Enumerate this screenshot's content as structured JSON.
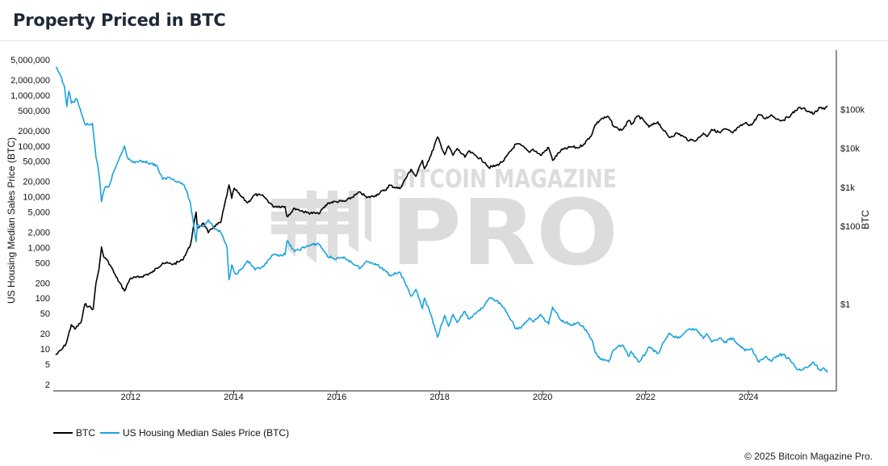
{
  "header": {
    "title": "Property Priced in BTC"
  },
  "chart_data": {
    "type": "line",
    "title": "Property Priced in BTC",
    "y_left": {
      "label": "US Housing Median Sales Price (BTC)",
      "scale": "log",
      "range": [
        2,
        5000000
      ],
      "ticks": [
        2,
        5,
        10,
        20,
        50,
        100,
        200,
        500,
        1000,
        2000,
        5000,
        10000,
        20000,
        50000,
        100000,
        200000,
        500000,
        1000000,
        2000000,
        5000000
      ],
      "tick_labels": [
        "2",
        "5",
        "10",
        "20",
        "50",
        "100",
        "200",
        "500",
        "1,000",
        "2,000",
        "5,000",
        "10,000",
        "20,000",
        "50,000",
        "100,000",
        "200,000",
        "500,000",
        "1,000,000",
        "2,000,000",
        "5,000,000"
      ]
    },
    "y_right": {
      "label": "BTC",
      "scale": "log",
      "range": [
        0.006,
        3000000
      ],
      "ticks": [
        1,
        100,
        1000,
        10000,
        100000
      ],
      "tick_labels": [
        "$1",
        "$100",
        "$1k",
        "$10k",
        "$100k"
      ]
    },
    "x_axis": {
      "range": [
        "2010-07-01",
        "2025-09-15"
      ],
      "ticks": [
        "2012-01-01",
        "2014-01-01",
        "2016-01-01",
        "2018-01-01",
        "2020-01-01",
        "2022-01-01",
        "2024-01-01"
      ],
      "tick_labels": [
        "2012",
        "2014",
        "2016",
        "2018",
        "2020",
        "2022",
        "2024"
      ]
    },
    "grid": false,
    "legend_position": "bottom-left",
    "series": [
      {
        "name": "BTC",
        "axis": "right",
        "color": "#000000",
        "points": [
          [
            "2010-07-18",
            0.05
          ],
          [
            "2010-09-01",
            0.07
          ],
          [
            "2010-10-01",
            0.1
          ],
          [
            "2010-11-06",
            0.3
          ],
          [
            "2010-12-01",
            0.23
          ],
          [
            "2011-01-15",
            0.35
          ],
          [
            "2011-02-10",
            1.0
          ],
          [
            "2011-03-10",
            0.88
          ],
          [
            "2011-04-10",
            0.75
          ],
          [
            "2011-04-30",
            3.5
          ],
          [
            "2011-05-20",
            7.5
          ],
          [
            "2011-06-08",
            29.5
          ],
          [
            "2011-06-25",
            16
          ],
          [
            "2011-07-15",
            14
          ],
          [
            "2011-08-10",
            10
          ],
          [
            "2011-09-20",
            5
          ],
          [
            "2011-11-18",
            2.2
          ],
          [
            "2011-12-31",
            4.7
          ],
          [
            "2012-03-01",
            4.9
          ],
          [
            "2012-06-01",
            6.5
          ],
          [
            "2012-08-15",
            11.5
          ],
          [
            "2012-11-01",
            10.7
          ],
          [
            "2013-01-01",
            13.5
          ],
          [
            "2013-02-28",
            33
          ],
          [
            "2013-04-09",
            230
          ],
          [
            "2013-04-18",
            90
          ],
          [
            "2013-06-01",
            120
          ],
          [
            "2013-07-05",
            68
          ],
          [
            "2013-08-15",
            100
          ],
          [
            "2013-10-01",
            125
          ],
          [
            "2013-11-29",
            1150
          ],
          [
            "2013-12-18",
            520
          ],
          [
            "2014-01-05",
            950
          ],
          [
            "2014-02-15",
            620
          ],
          [
            "2014-04-10",
            400
          ],
          [
            "2014-06-01",
            650
          ],
          [
            "2014-08-01",
            590
          ],
          [
            "2014-10-05",
            330
          ],
          [
            "2014-12-31",
            320
          ],
          [
            "2015-01-14",
            178
          ],
          [
            "2015-03-10",
            290
          ],
          [
            "2015-06-01",
            225
          ],
          [
            "2015-08-25",
            210
          ],
          [
            "2015-11-04",
            400
          ],
          [
            "2015-12-31",
            430
          ],
          [
            "2016-03-01",
            435
          ],
          [
            "2016-06-18",
            750
          ],
          [
            "2016-08-02",
            540
          ],
          [
            "2016-10-01",
            615
          ],
          [
            "2016-12-31",
            960
          ],
          [
            "2017-01-05",
            1130
          ],
          [
            "2017-03-24",
            920
          ],
          [
            "2017-06-12",
            2900
          ],
          [
            "2017-07-16",
            1900
          ],
          [
            "2017-09-01",
            4900
          ],
          [
            "2017-09-15",
            3000
          ],
          [
            "2017-11-01",
            6700
          ],
          [
            "2017-12-17",
            19500
          ],
          [
            "2018-02-06",
            6900
          ],
          [
            "2018-03-05",
            11500
          ],
          [
            "2018-04-06",
            6600
          ],
          [
            "2018-05-05",
            9800
          ],
          [
            "2018-06-29",
            5900
          ],
          [
            "2018-07-24",
            8300
          ],
          [
            "2018-09-15",
            6500
          ],
          [
            "2018-11-20",
            4300
          ],
          [
            "2018-12-15",
            3200
          ],
          [
            "2019-02-08",
            3600
          ],
          [
            "2019-04-02",
            4900
          ],
          [
            "2019-06-26",
            12900
          ],
          [
            "2019-08-05",
            11800
          ],
          [
            "2019-09-26",
            8000
          ],
          [
            "2019-10-26",
            9500
          ],
          [
            "2019-12-18",
            6600
          ],
          [
            "2020-02-13",
            10400
          ],
          [
            "2020-03-12",
            4900
          ],
          [
            "2020-05-10",
            8800
          ],
          [
            "2020-07-27",
            11000
          ],
          [
            "2020-09-05",
            10200
          ],
          [
            "2020-10-21",
            12900
          ],
          [
            "2020-12-17",
            23000
          ],
          [
            "2021-01-08",
            40000
          ],
          [
            "2021-02-21",
            57000
          ],
          [
            "2021-04-14",
            63500
          ],
          [
            "2021-05-19",
            37000
          ],
          [
            "2021-06-22",
            31000
          ],
          [
            "2021-07-20",
            29800
          ],
          [
            "2021-09-06",
            52000
          ],
          [
            "2021-09-21",
            41000
          ],
          [
            "2021-11-10",
            68000
          ],
          [
            "2021-12-31",
            46000
          ],
          [
            "2022-01-24",
            35000
          ],
          [
            "2022-03-29",
            47500
          ],
          [
            "2022-05-11",
            28000
          ],
          [
            "2022-06-18",
            19000
          ],
          [
            "2022-08-14",
            24500
          ],
          [
            "2022-10-01",
            19400
          ],
          [
            "2022-11-09",
            15800
          ],
          [
            "2022-12-31",
            16500
          ],
          [
            "2023-02-15",
            24500
          ],
          [
            "2023-03-10",
            20000
          ],
          [
            "2023-04-14",
            30400
          ],
          [
            "2023-06-15",
            25000
          ],
          [
            "2023-07-13",
            31400
          ],
          [
            "2023-09-11",
            25000
          ],
          [
            "2023-10-24",
            34500
          ],
          [
            "2023-12-08",
            44000
          ],
          [
            "2024-01-23",
            39500
          ],
          [
            "2024-03-14",
            73500
          ],
          [
            "2024-05-01",
            57000
          ],
          [
            "2024-06-07",
            71500
          ],
          [
            "2024-08-05",
            53500
          ],
          [
            "2024-09-06",
            53000
          ],
          [
            "2024-10-29",
            72500
          ],
          [
            "2024-12-17",
            106000
          ],
          [
            "2025-01-20",
            106000
          ],
          [
            "2025-04-08",
            76000
          ],
          [
            "2025-05-22",
            110000
          ],
          [
            "2025-06-22",
            100000
          ],
          [
            "2025-07-14",
            122000
          ]
        ]
      },
      {
        "name": "US Housing Median Sales Price (BTC)",
        "axis": "left",
        "color": "#1aa3dc",
        "points": [
          [
            "2010-07-18",
            3600000
          ],
          [
            "2010-08-20",
            2500000
          ],
          [
            "2010-09-20",
            1400000
          ],
          [
            "2010-10-05",
            600000
          ],
          [
            "2010-10-20",
            1200000
          ],
          [
            "2010-11-06",
            700000
          ],
          [
            "2010-12-15",
            850000
          ],
          [
            "2011-01-15",
            450000
          ],
          [
            "2011-02-10",
            270000
          ],
          [
            "2011-03-15",
            260000
          ],
          [
            "2011-04-05",
            280000
          ],
          [
            "2011-04-30",
            60000
          ],
          [
            "2011-05-20",
            30000
          ],
          [
            "2011-06-08",
            8000
          ],
          [
            "2011-07-01",
            15000
          ],
          [
            "2011-08-01",
            16000
          ],
          [
            "2011-09-01",
            30000
          ],
          [
            "2011-10-15",
            60000
          ],
          [
            "2011-11-18",
            100000
          ],
          [
            "2011-12-15",
            55000
          ],
          [
            "2012-01-15",
            48000
          ],
          [
            "2012-04-01",
            50000
          ],
          [
            "2012-07-01",
            42000
          ],
          [
            "2012-08-15",
            22000
          ],
          [
            "2012-10-01",
            24000
          ],
          [
            "2012-12-01",
            20000
          ],
          [
            "2013-01-15",
            17000
          ],
          [
            "2013-02-28",
            7500
          ],
          [
            "2013-04-09",
            1300
          ],
          [
            "2013-04-18",
            2800
          ],
          [
            "2013-06-01",
            2600
          ],
          [
            "2013-07-05",
            3500
          ],
          [
            "2013-08-15",
            2400
          ],
          [
            "2013-10-01",
            2000
          ],
          [
            "2013-11-15",
            1000
          ],
          [
            "2013-11-29",
            230
          ],
          [
            "2013-12-18",
            450
          ],
          [
            "2014-01-15",
            300
          ],
          [
            "2014-03-01",
            380
          ],
          [
            "2014-04-10",
            550
          ],
          [
            "2014-06-01",
            360
          ],
          [
            "2014-08-01",
            420
          ],
          [
            "2014-10-05",
            700
          ],
          [
            "2014-12-31",
            720
          ],
          [
            "2015-01-14",
            1350
          ],
          [
            "2015-03-10",
            830
          ],
          [
            "2015-06-01",
            1050
          ],
          [
            "2015-08-25",
            1200
          ],
          [
            "2015-11-04",
            650
          ],
          [
            "2015-12-31",
            600
          ],
          [
            "2016-03-01",
            620
          ],
          [
            "2016-06-18",
            390
          ],
          [
            "2016-08-02",
            540
          ],
          [
            "2016-10-01",
            480
          ],
          [
            "2016-12-31",
            320
          ],
          [
            "2017-01-05",
            280
          ],
          [
            "2017-03-24",
            330
          ],
          [
            "2017-06-12",
            110
          ],
          [
            "2017-07-16",
            150
          ],
          [
            "2017-09-01",
            62
          ],
          [
            "2017-09-15",
            100
          ],
          [
            "2017-11-01",
            46
          ],
          [
            "2017-12-17",
            17
          ],
          [
            "2018-02-06",
            46
          ],
          [
            "2018-03-05",
            28
          ],
          [
            "2018-04-06",
            48
          ],
          [
            "2018-05-05",
            33
          ],
          [
            "2018-06-29",
            55
          ],
          [
            "2018-07-24",
            39
          ],
          [
            "2018-09-15",
            50
          ],
          [
            "2018-11-20",
            75
          ],
          [
            "2018-12-15",
            100
          ],
          [
            "2019-02-08",
            90
          ],
          [
            "2019-04-02",
            65
          ],
          [
            "2019-06-26",
            25
          ],
          [
            "2019-08-05",
            27
          ],
          [
            "2019-09-26",
            40
          ],
          [
            "2019-10-26",
            34
          ],
          [
            "2019-12-18",
            48
          ],
          [
            "2020-02-13",
            31
          ],
          [
            "2020-03-12",
            67
          ],
          [
            "2020-05-10",
            37
          ],
          [
            "2020-07-27",
            30
          ],
          [
            "2020-09-05",
            33
          ],
          [
            "2020-10-21",
            26
          ],
          [
            "2020-12-17",
            15
          ],
          [
            "2021-01-08",
            8.5
          ],
          [
            "2021-02-21",
            6.2
          ],
          [
            "2021-04-14",
            5.6
          ],
          [
            "2021-05-19",
            9.6
          ],
          [
            "2021-06-22",
            11.5
          ],
          [
            "2021-07-20",
            12
          ],
          [
            "2021-09-06",
            7.1
          ],
          [
            "2021-09-21",
            9
          ],
          [
            "2021-11-10",
            5.5
          ],
          [
            "2021-12-31",
            8.2
          ],
          [
            "2022-01-24",
            11
          ],
          [
            "2022-03-29",
            8.1
          ],
          [
            "2022-05-11",
            13.7
          ],
          [
            "2022-06-18",
            20.5
          ],
          [
            "2022-08-14",
            16.2
          ],
          [
            "2022-10-01",
            20.3
          ],
          [
            "2022-11-09",
            25
          ],
          [
            "2022-12-31",
            23.5
          ],
          [
            "2023-02-15",
            16.1
          ],
          [
            "2023-03-10",
            20
          ],
          [
            "2023-04-14",
            13.7
          ],
          [
            "2023-06-15",
            16.6
          ],
          [
            "2023-07-13",
            13.3
          ],
          [
            "2023-09-11",
            16.4
          ],
          [
            "2023-10-24",
            11.9
          ],
          [
            "2023-12-08",
            9.2
          ],
          [
            "2024-01-23",
            10.2
          ],
          [
            "2024-03-14",
            5.5
          ],
          [
            "2024-05-01",
            7.1
          ],
          [
            "2024-06-07",
            5.8
          ],
          [
            "2024-08-05",
            7.6
          ],
          [
            "2024-09-06",
            7.7
          ],
          [
            "2024-10-29",
            5.6
          ],
          [
            "2024-12-17",
            3.9
          ],
          [
            "2025-01-20",
            3.9
          ],
          [
            "2025-04-08",
            5.4
          ],
          [
            "2025-05-22",
            3.8
          ],
          [
            "2025-06-22",
            4.1
          ],
          [
            "2025-07-14",
            3.4
          ]
        ]
      }
    ]
  },
  "watermark": {
    "line1": "BITCOIN MAGAZINE",
    "line2": "PRO"
  },
  "legend": [
    {
      "label": "BTC",
      "color": "#000000"
    },
    {
      "label": "US Housing Median Sales Price (BTC)",
      "color": "#1aa3dc"
    }
  ],
  "footer": {
    "copyright": "© 2025 Bitcoin Magazine Pro."
  }
}
